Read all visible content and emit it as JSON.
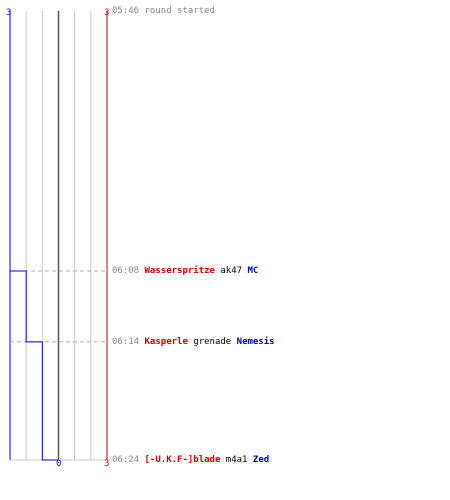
{
  "chart_data": {
    "type": "line",
    "title": "",
    "y_left_top_label": "3",
    "y_right_top_label": "3",
    "x_bottom_label": "0",
    "x_right_bottom_label": "3",
    "xlim": [
      0,
      3
    ],
    "grid": true,
    "series": [
      {
        "color": "#0000cc",
        "points": [
          {
            "time": "05:46",
            "score": 3
          },
          {
            "time": "06:08",
            "score": 2
          },
          {
            "time": "06:14",
            "score": 1
          },
          {
            "time": "06:24",
            "score": 0
          }
        ]
      }
    ]
  },
  "events": [
    {
      "time": "05:46",
      "text": "round started"
    },
    {
      "time": "06:08",
      "killer": "Wasserspritze",
      "weapon": "ak47",
      "victim": "MC"
    },
    {
      "time": "06:14",
      "killer": "Kasperle",
      "weapon": "grenade",
      "victim": "Nemesis"
    },
    {
      "time": "06:24",
      "killer": "[-U.K.F-]blade",
      "weapon": "m4a1",
      "victim": "Zed"
    }
  ],
  "colors": {
    "blue_team": "#0000cc",
    "red_team": "#cc0000",
    "grid": "#c8c8c8",
    "center": "#555555"
  }
}
